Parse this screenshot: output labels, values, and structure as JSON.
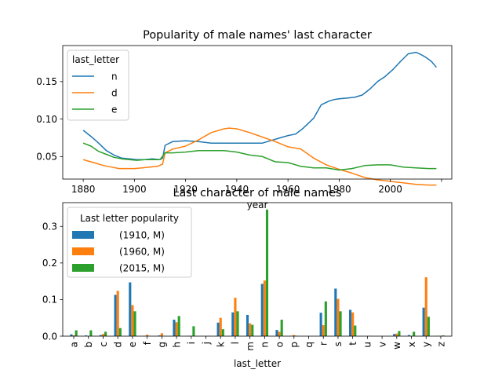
{
  "chart_data": [
    {
      "type": "line",
      "title": "Popularity of male names' last character",
      "xlabel": "year",
      "ylabel": "",
      "xlim": [
        1872,
        2024
      ],
      "ylim": [
        0.02,
        0.198
      ],
      "xticks": [
        1880,
        1900,
        1920,
        1940,
        1960,
        1980,
        2000,
        2020
      ],
      "xtick_labels": [
        "1880",
        "1900",
        "1920",
        "1940",
        "1960",
        "1980",
        "2000",
        ""
      ],
      "yticks": [
        0.05,
        0.1,
        0.15
      ],
      "ytick_labels": [
        "0.05",
        "0.10",
        "0.15"
      ],
      "legend": {
        "title": "last_letter",
        "placement": "top-left"
      },
      "grid": false,
      "series": [
        {
          "name": "n",
          "color": "#1f77b4",
          "x": [
            1880,
            1883,
            1886,
            1889,
            1892,
            1895,
            1898,
            1901,
            1904,
            1907,
            1910,
            1911,
            1912,
            1915,
            1920,
            1925,
            1930,
            1935,
            1940,
            1945,
            1950,
            1953,
            1956,
            1960,
            1963,
            1966,
            1970,
            1973,
            1976,
            1978,
            1980,
            1983,
            1986,
            1989,
            1992,
            1995,
            1998,
            2001,
            2004,
            2007,
            2010,
            2012,
            2014,
            2016,
            2018
          ],
          "y": [
            0.085,
            0.077,
            0.068,
            0.058,
            0.052,
            0.048,
            0.047,
            0.046,
            0.046,
            0.047,
            0.046,
            0.048,
            0.065,
            0.07,
            0.071,
            0.07,
            0.068,
            0.068,
            0.068,
            0.068,
            0.068,
            0.071,
            0.074,
            0.078,
            0.08,
            0.088,
            0.101,
            0.119,
            0.124,
            0.126,
            0.127,
            0.128,
            0.129,
            0.132,
            0.14,
            0.15,
            0.157,
            0.166,
            0.177,
            0.187,
            0.189,
            0.186,
            0.182,
            0.177,
            0.169
          ]
        },
        {
          "name": "d",
          "color": "#ff7f0e",
          "x": [
            1880,
            1882,
            1885,
            1888,
            1891,
            1894,
            1897,
            1900,
            1903,
            1906,
            1909,
            1911,
            1912,
            1915,
            1920,
            1925,
            1930,
            1935,
            1937,
            1940,
            1945,
            1950,
            1955,
            1960,
            1965,
            1970,
            1975,
            1980,
            1985,
            1990,
            1995,
            2000,
            2005,
            2010,
            2015,
            2018
          ],
          "y": [
            0.046,
            0.044,
            0.041,
            0.038,
            0.036,
            0.034,
            0.034,
            0.034,
            0.035,
            0.036,
            0.037,
            0.04,
            0.055,
            0.06,
            0.064,
            0.072,
            0.082,
            0.087,
            0.088,
            0.087,
            0.082,
            0.076,
            0.07,
            0.063,
            0.06,
            0.048,
            0.039,
            0.033,
            0.028,
            0.022,
            0.019,
            0.017,
            0.015,
            0.013,
            0.012,
            0.012
          ]
        },
        {
          "name": "e",
          "color": "#2ca02c",
          "x": [
            1880,
            1883,
            1886,
            1889,
            1892,
            1895,
            1898,
            1901,
            1904,
            1907,
            1910,
            1912,
            1915,
            1920,
            1925,
            1930,
            1935,
            1940,
            1945,
            1950,
            1955,
            1960,
            1965,
            1970,
            1975,
            1980,
            1985,
            1990,
            1995,
            2000,
            2005,
            2010,
            2015,
            2018
          ],
          "y": [
            0.068,
            0.064,
            0.057,
            0.053,
            0.049,
            0.047,
            0.046,
            0.045,
            0.046,
            0.046,
            0.046,
            0.055,
            0.055,
            0.056,
            0.058,
            0.058,
            0.058,
            0.056,
            0.052,
            0.05,
            0.043,
            0.042,
            0.037,
            0.035,
            0.035,
            0.032,
            0.034,
            0.038,
            0.039,
            0.039,
            0.036,
            0.035,
            0.034,
            0.034
          ]
        }
      ]
    },
    {
      "type": "bar",
      "title": "Last character of male names",
      "xlabel": "last_letter",
      "ylabel": "",
      "ylim": [
        0,
        0.365
      ],
      "yticks": [
        0.0,
        0.1,
        0.2,
        0.3
      ],
      "ytick_labels": [
        "0.0",
        "0.1",
        "0.2",
        "0.3"
      ],
      "legend": {
        "title": "Last letter popularity",
        "placement": "top-left"
      },
      "grid": false,
      "categories": [
        "a",
        "b",
        "c",
        "d",
        "e",
        "f",
        "g",
        "h",
        "i",
        "j",
        "k",
        "l",
        "m",
        "n",
        "o",
        "p",
        "q",
        "r",
        "s",
        "t",
        "u",
        "v",
        "w",
        "x",
        "y",
        "z"
      ],
      "series": [
        {
          "name": "(1910, M)",
          "color": "#1f77b4",
          "values": [
            0.005,
            0.002,
            0.003,
            0.113,
            0.147,
            0.001,
            0.002,
            0.045,
            0.001,
            0.0,
            0.037,
            0.065,
            0.058,
            0.143,
            0.017,
            0.001,
            0.0,
            0.064,
            0.13,
            0.072,
            0.0,
            0.0,
            0.006,
            0.003,
            0.078,
            0.001
          ]
        },
        {
          "name": "(1960, M)",
          "color": "#ff7f0e",
          "values": [
            0.002,
            0.0,
            0.006,
            0.124,
            0.085,
            0.004,
            0.008,
            0.038,
            0.001,
            0.0,
            0.05,
            0.105,
            0.035,
            0.152,
            0.012,
            0.003,
            0.0,
            0.03,
            0.102,
            0.065,
            0.0,
            0.0,
            0.007,
            0.001,
            0.161,
            0.001
          ]
        },
        {
          "name": "(2015, M)",
          "color": "#2ca02c",
          "values": [
            0.016,
            0.016,
            0.012,
            0.022,
            0.068,
            0.001,
            0.001,
            0.055,
            0.027,
            0.001,
            0.019,
            0.068,
            0.031,
            0.346,
            0.045,
            0.001,
            0.0,
            0.095,
            0.068,
            0.029,
            0.001,
            0.0,
            0.014,
            0.012,
            0.053,
            0.002
          ]
        }
      ]
    }
  ]
}
